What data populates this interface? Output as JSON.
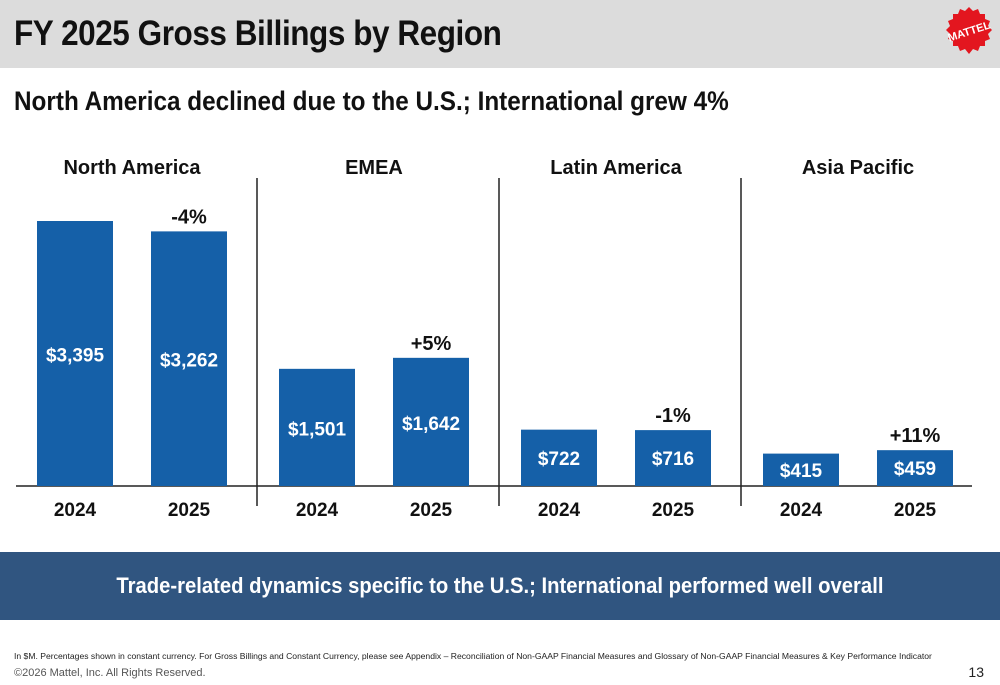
{
  "header": {
    "title": "FY 2025 Gross Billings by Region",
    "logo_text": "MATTEL"
  },
  "subtitle": "North America declined due to the U.S.; International grew 4%",
  "chart_data": {
    "type": "bar",
    "unit": "$M",
    "categories": [
      "2024",
      "2025"
    ],
    "panels": [
      {
        "region": "North America",
        "values": [
          3395,
          3262
        ],
        "labels": [
          "$3,395",
          "$3,262"
        ],
        "change": "-4%"
      },
      {
        "region": "EMEA",
        "values": [
          1501,
          1642
        ],
        "labels": [
          "$1,501",
          "$1,642"
        ],
        "change": "+5%"
      },
      {
        "region": "Latin America",
        "values": [
          722,
          716
        ],
        "labels": [
          "$722",
          "$716"
        ],
        "change": "-1%"
      },
      {
        "region": "Asia Pacific",
        "values": [
          415,
          459
        ],
        "labels": [
          "$415",
          "$459"
        ],
        "change": "+11%"
      }
    ],
    "bar_color": "#1560a8",
    "ylim": [
      0,
      3600
    ]
  },
  "banner": {
    "text": "Trade-related dynamics specific to the U.S.; International performed well overall"
  },
  "footer": {
    "note": "In $M. Percentages shown in constant currency. For Gross Billings and Constant Currency, please see Appendix – Reconciliation of Non-GAAP Financial Measures and Glossary of Non-GAAP Financial Measures & Key Performance Indicator",
    "copyright": "©2026 Mattel, Inc.  All Rights Reserved.",
    "page": "13"
  }
}
